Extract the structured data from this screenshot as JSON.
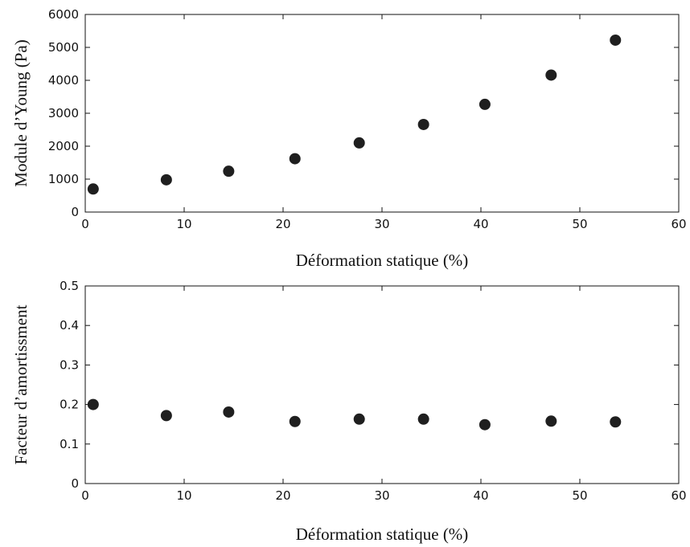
{
  "chart_data": [
    {
      "type": "scatter",
      "title": "",
      "xlabel": "Déformation statique (%)",
      "ylabel": "Module d’Young (Pa)",
      "xlim": [
        0,
        60
      ],
      "ylim": [
        0,
        6000
      ],
      "xticks": [
        0,
        10,
        20,
        30,
        40,
        50,
        60
      ],
      "yticks": [
        0,
        1000,
        2000,
        3000,
        4000,
        5000,
        6000
      ],
      "grid": false,
      "marker_color": "#1f1f1f",
      "series": [
        {
          "x": [
            0.8,
            8.2,
            14.5,
            21.2,
            27.7,
            34.2,
            40.4,
            47.1,
            53.6
          ],
          "y": [
            700,
            980,
            1240,
            1620,
            2100,
            2660,
            3270,
            4160,
            5220
          ]
        }
      ]
    },
    {
      "type": "scatter",
      "title": "",
      "xlabel": "Déformation statique (%)",
      "ylabel": "Facteur d’amortissment",
      "xlim": [
        0,
        60
      ],
      "ylim": [
        0,
        0.5
      ],
      "xticks": [
        0,
        10,
        20,
        30,
        40,
        50,
        60
      ],
      "yticks": [
        0,
        0.1,
        0.2,
        0.3,
        0.4,
        0.5
      ],
      "grid": false,
      "marker_color": "#1f1f1f",
      "series": [
        {
          "x": [
            0.8,
            8.2,
            14.5,
            21.2,
            27.7,
            34.2,
            40.4,
            47.1,
            53.6
          ],
          "y": [
            0.2,
            0.172,
            0.181,
            0.157,
            0.163,
            0.163,
            0.149,
            0.158,
            0.156
          ]
        }
      ]
    }
  ]
}
